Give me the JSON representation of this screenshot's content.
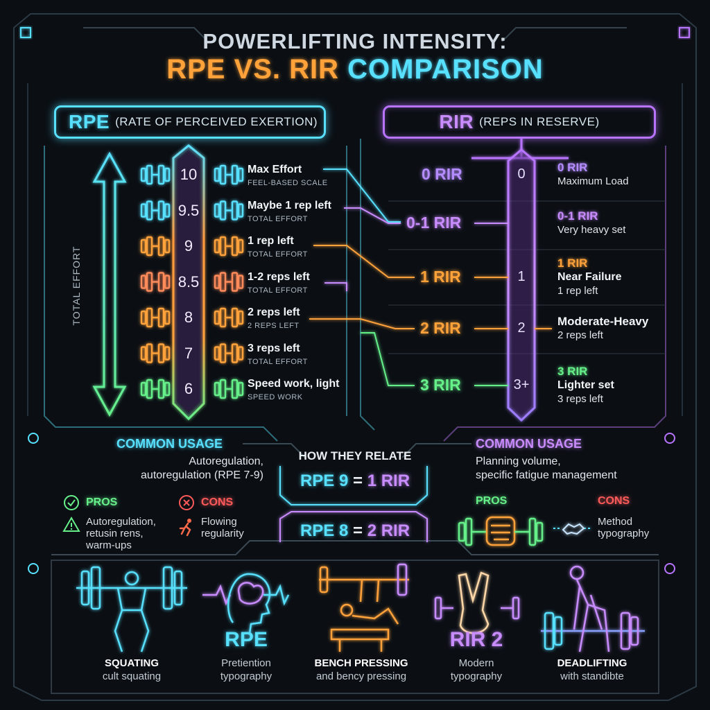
{
  "title": {
    "line1": "POWERLIFTING INTENSITY:",
    "line2_a": "RPE VS. RIR",
    "line2_b": "COMPARISON"
  },
  "rpe_header": {
    "abbr": "RPE",
    "full": "(RATE OF PERCEIVED EXERTION)"
  },
  "rir_header": {
    "abbr": "RIR",
    "full": "(REPS IN RESERVE)"
  },
  "total_effort_label": "TOTAL EFFORT",
  "rpe_rows": [
    {
      "value": "10",
      "title": "Max Effort",
      "sub": "FEEL-BASED SCALE",
      "color": "#58e1ff"
    },
    {
      "value": "9.5",
      "title": "Maybe 1 rep left",
      "sub": "TOTAL EFFORT",
      "color": "#58e1ff"
    },
    {
      "value": "9",
      "title": "1 rep left",
      "sub": "TOTAL EFFORT",
      "color": "#ffa23a"
    },
    {
      "value": "8.5",
      "title": "1-2 reps left",
      "sub": "TOTAL EFFORT",
      "color": "#ff8a5a"
    },
    {
      "value": "8",
      "title": "2 reps left",
      "sub": "2 REPS LEFT",
      "color": "#ffa23a"
    },
    {
      "value": "7",
      "title": "3 reps left",
      "sub": "TOTAL EFFORT",
      "color": "#ffa23a"
    },
    {
      "value": "6",
      "title": "Speed work, light",
      "sub": "SPEED WORK",
      "color": "#66f08a"
    }
  ],
  "rir_rows": [
    {
      "label": "0 RIR",
      "value": "0",
      "title": "0 RIR",
      "sub": "Maximum Load",
      "color": "#b58cff"
    },
    {
      "label": "0-1 RIR",
      "value": "",
      "title": "0-1 RIR",
      "sub": "Very heavy set",
      "color": "#c98cff"
    },
    {
      "label": "1 RIR",
      "value": "1",
      "title": "1 RIR",
      "sub2": "Near Failure",
      "sub": "1 rep left",
      "color": "#ffa23a"
    },
    {
      "label": "2 RIR",
      "value": "2",
      "title": "Moderate-Heavy",
      "sub": "2 reps left",
      "color": "#ffa23a"
    },
    {
      "label": "3 RIR",
      "value": "3+",
      "title": "3 RIR",
      "sub2": "Lighter set",
      "sub": "3 reps left",
      "color": "#66f08a"
    }
  ],
  "common_usage_left": {
    "title": "COMMON USAGE",
    "line1": "Autoregulation,",
    "line2": "autoregulation (RPE 7-9)"
  },
  "common_usage_right": {
    "title": "COMMON USAGE",
    "line1": "Planning volume,",
    "line2": "specific fatigue management"
  },
  "relate": {
    "title": "HOW THEY RELATE",
    "eq1_a": "RPE 9",
    "eq1_eq": "=",
    "eq1_b": "1 RIR",
    "eq2_a": "RPE 8",
    "eq2_eq": "=",
    "eq2_b": "2 RIR"
  },
  "left_pros": {
    "title": "PROS",
    "body1": "Autoregulation,",
    "body2": "retusin rens,",
    "body3": "warm-ups"
  },
  "left_cons": {
    "title": "CONS",
    "body1": "Flowing",
    "body2": "regularity"
  },
  "right_pros": {
    "title": "PROS"
  },
  "right_cons": {
    "title": "CONS",
    "body1": "Method",
    "body2": "typography"
  },
  "bottom": [
    {
      "title": "SQUATING",
      "sub": "cult squating"
    },
    {
      "big": "RPE",
      "sub1": "Pretiention",
      "sub2": "typography"
    },
    {
      "title": "BENCH PRESSING",
      "sub": "and bency pressing"
    },
    {
      "big": "RIR 2",
      "sub1": "Modern",
      "sub2": "typography"
    },
    {
      "title": "DEADLIFTING",
      "sub": "with standibte"
    }
  ],
  "colors": {
    "cyan": "#58e1ff",
    "purple": "#b874ff",
    "orange": "#ffa23a",
    "green": "#66f08a",
    "red": "#ff5a5a"
  }
}
